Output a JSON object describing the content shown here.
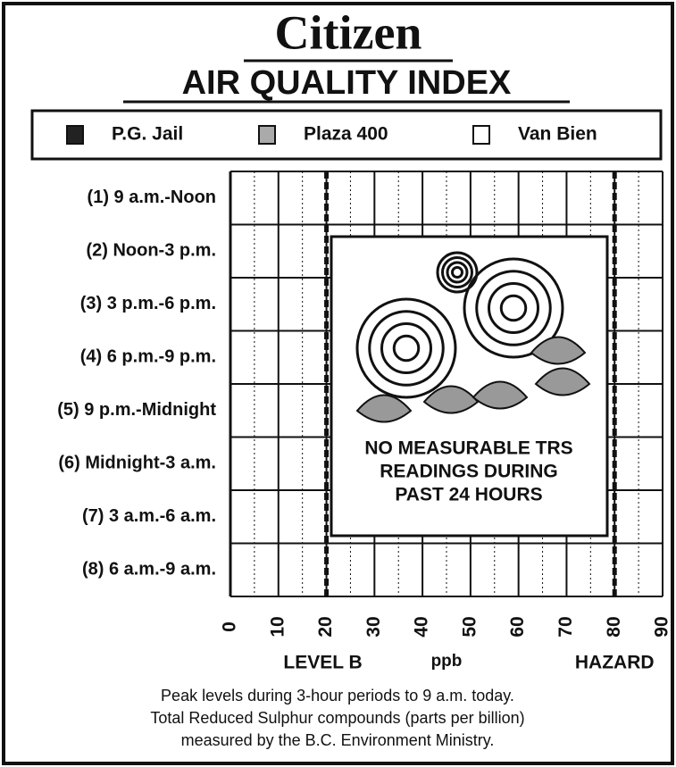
{
  "chart_data": {
    "type": "bar",
    "orientation": "horizontal",
    "title": "Citizen",
    "subtitle": "AIR QUALITY INDEX",
    "categories": [
      "(1) 9 a.m.-Noon",
      "(2) Noon-3 p.m.",
      "(3) 3 p.m.-6 p.m.",
      "(4) 6 p.m.-9 p.m.",
      "(5) 9 p.m.-Midnight",
      "(6) Midnight-3 a.m.",
      "(7) 3 a.m.-6 a.m.",
      "(8) 6 a.m.-9 a.m."
    ],
    "series": [
      {
        "name": "P.G. Jail",
        "color": "#222222",
        "values": [
          null,
          null,
          null,
          null,
          null,
          null,
          null,
          null
        ]
      },
      {
        "name": "Plaza 400",
        "color": "#aaaaaa",
        "values": [
          null,
          null,
          null,
          null,
          null,
          null,
          null,
          null
        ]
      },
      {
        "name": "Van Bien",
        "color": "#ffffff",
        "values": [
          null,
          null,
          null,
          null,
          null,
          null,
          null,
          null
        ]
      }
    ],
    "xlim": [
      0,
      90
    ],
    "xticks": [
      0,
      10,
      20,
      30,
      40,
      50,
      60,
      70,
      80,
      90
    ],
    "x_label": "ppb",
    "grid": true,
    "reference_lines": [
      {
        "value": 20,
        "label": "LEVEL B"
      },
      {
        "value": 80,
        "label": "HAZARD"
      }
    ],
    "annotation": [
      "NO MEASURABLE TRS",
      "READINGS DURING",
      "PAST 24 HOURS"
    ],
    "footnote": [
      "Peak levels during 3-hour periods to 9 a.m. today.",
      "Total Reduced Sulphur compounds (parts per billion)",
      "measured by the B.C. Environment Ministry."
    ]
  }
}
